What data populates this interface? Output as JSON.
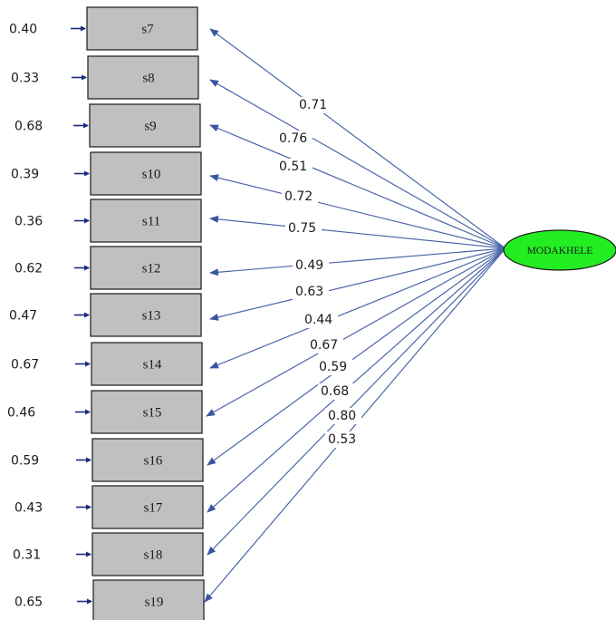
{
  "latent": {
    "label": "MODAKHELE",
    "color": "#22ee22"
  },
  "items": [
    {
      "name": "s7",
      "loading": "0.71",
      "error": "0.40"
    },
    {
      "name": "s8",
      "loading": "0.76",
      "error": "0.33"
    },
    {
      "name": "s9",
      "loading": "0.51",
      "error": "0.68"
    },
    {
      "name": "s10",
      "loading": "0.72",
      "error": "0.39"
    },
    {
      "name": "s11",
      "loading": "0.75",
      "error": "0.36"
    },
    {
      "name": "s12",
      "loading": "0.49",
      "error": "0.62"
    },
    {
      "name": "s13",
      "loading": "0.63",
      "error": "0.47"
    },
    {
      "name": "s14",
      "loading": "0.44",
      "error": "0.67"
    },
    {
      "name": "s15",
      "loading": "0.67",
      "error": "0.46"
    },
    {
      "name": "s16",
      "loading": "0.59",
      "error": "0.59"
    },
    {
      "name": "s17",
      "loading": "0.68",
      "error": "0.43"
    },
    {
      "name": "s18",
      "loading": "0.80",
      "error": "0.31"
    },
    {
      "name": "s19",
      "loading": "0.53",
      "error": "0.65"
    }
  ],
  "colors": {
    "box": "#c0c0c0",
    "arrow": "#4a66a8",
    "error_arrow": "#1a2a80"
  }
}
